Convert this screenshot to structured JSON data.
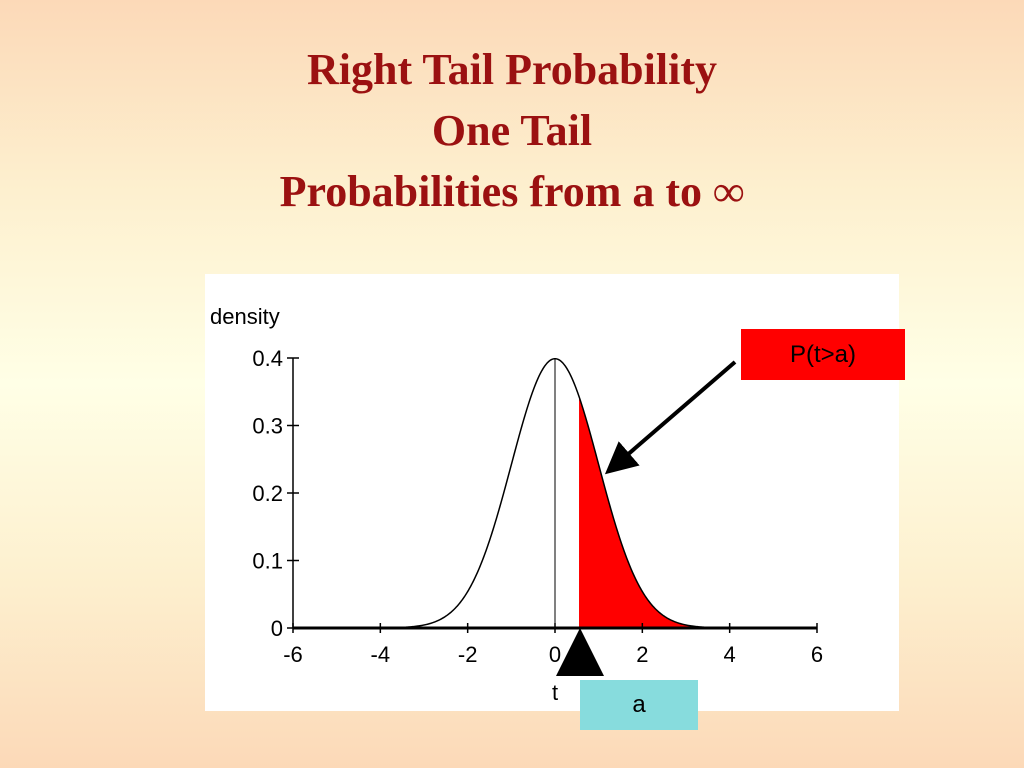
{
  "slide": {
    "title_line1": "Right Tail Probability",
    "title_line2": "One Tail",
    "title_line3": "Probabilities from a to ∞"
  },
  "annotations": {
    "tail_label": "P(t>a)",
    "a_label": "a"
  },
  "colors": {
    "title": "#9b1111",
    "tail_fill": "#ff0000",
    "a_box": "#87dcdd",
    "curve": "#000000"
  },
  "chart_data": {
    "type": "area",
    "distribution": "standard normal density",
    "ylabel": "density",
    "xlabel": "t",
    "xlim": [
      -6,
      6
    ],
    "ylim": [
      0,
      0.4
    ],
    "x_ticks": [
      -6,
      -4,
      -2,
      0,
      2,
      4,
      6
    ],
    "y_ticks": [
      0,
      0.1,
      0.2,
      0.3,
      0.4
    ],
    "x_tick_labels": [
      "-6",
      "-4",
      "-2",
      "0",
      "2",
      "4",
      "6"
    ],
    "y_tick_labels": [
      "0",
      "0.1",
      "0.2",
      "0.3",
      "0.4"
    ],
    "shaded_from": 0.55,
    "shaded_to": 3.2,
    "grid": false,
    "curve_points": {
      "x": [
        -6,
        -5,
        -4,
        -3.5,
        -3,
        -2.5,
        -2,
        -1.5,
        -1,
        -0.5,
        0,
        0.5,
        1,
        1.5,
        2,
        2.5,
        3,
        3.5,
        4,
        5,
        6
      ],
      "y": [
        0,
        0,
        0.0001,
        0.0009,
        0.0044,
        0.0175,
        0.054,
        0.1295,
        0.242,
        0.3521,
        0.3989,
        0.3521,
        0.242,
        0.1295,
        0.054,
        0.0175,
        0.0044,
        0.0009,
        0.0001,
        0,
        0
      ]
    }
  }
}
